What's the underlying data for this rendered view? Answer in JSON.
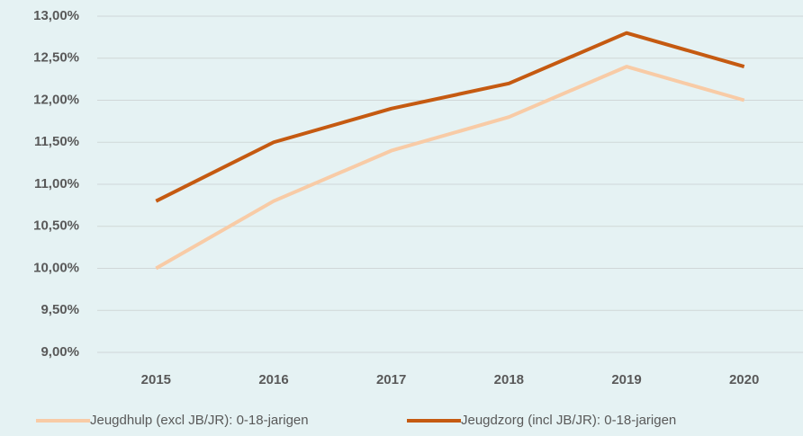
{
  "chart_data": {
    "type": "line",
    "categories": [
      "2015",
      "2016",
      "2017",
      "2018",
      "2019",
      "2020"
    ],
    "series": [
      {
        "name": "Jeugdhulp (excl JB/JR): 0-18-jarigen",
        "color": "#f8cba6",
        "values": [
          10.0,
          10.8,
          11.4,
          11.8,
          12.4,
          12.0
        ]
      },
      {
        "name": "Jeugdzorg (incl JB/JR): 0-18-jarigen",
        "color": "#c55a11",
        "values": [
          10.8,
          11.5,
          11.9,
          12.2,
          12.8,
          12.4
        ]
      }
    ],
    "ylim": [
      9,
      13
    ],
    "yticks": [
      {
        "value": 9,
        "label": "9,00%"
      },
      {
        "value": 9.5,
        "label": "9,50%"
      },
      {
        "value": 10,
        "label": "10,00%"
      },
      {
        "value": 10.5,
        "label": "10,50%"
      },
      {
        "value": 11,
        "label": "11,00%"
      },
      {
        "value": 11.5,
        "label": "11,50%"
      },
      {
        "value": 12,
        "label": "12,00%"
      },
      {
        "value": 12.5,
        "label": "12,50%"
      },
      {
        "value": 13,
        "label": "13,00%"
      }
    ],
    "grid": true,
    "legend": "bottom"
  }
}
